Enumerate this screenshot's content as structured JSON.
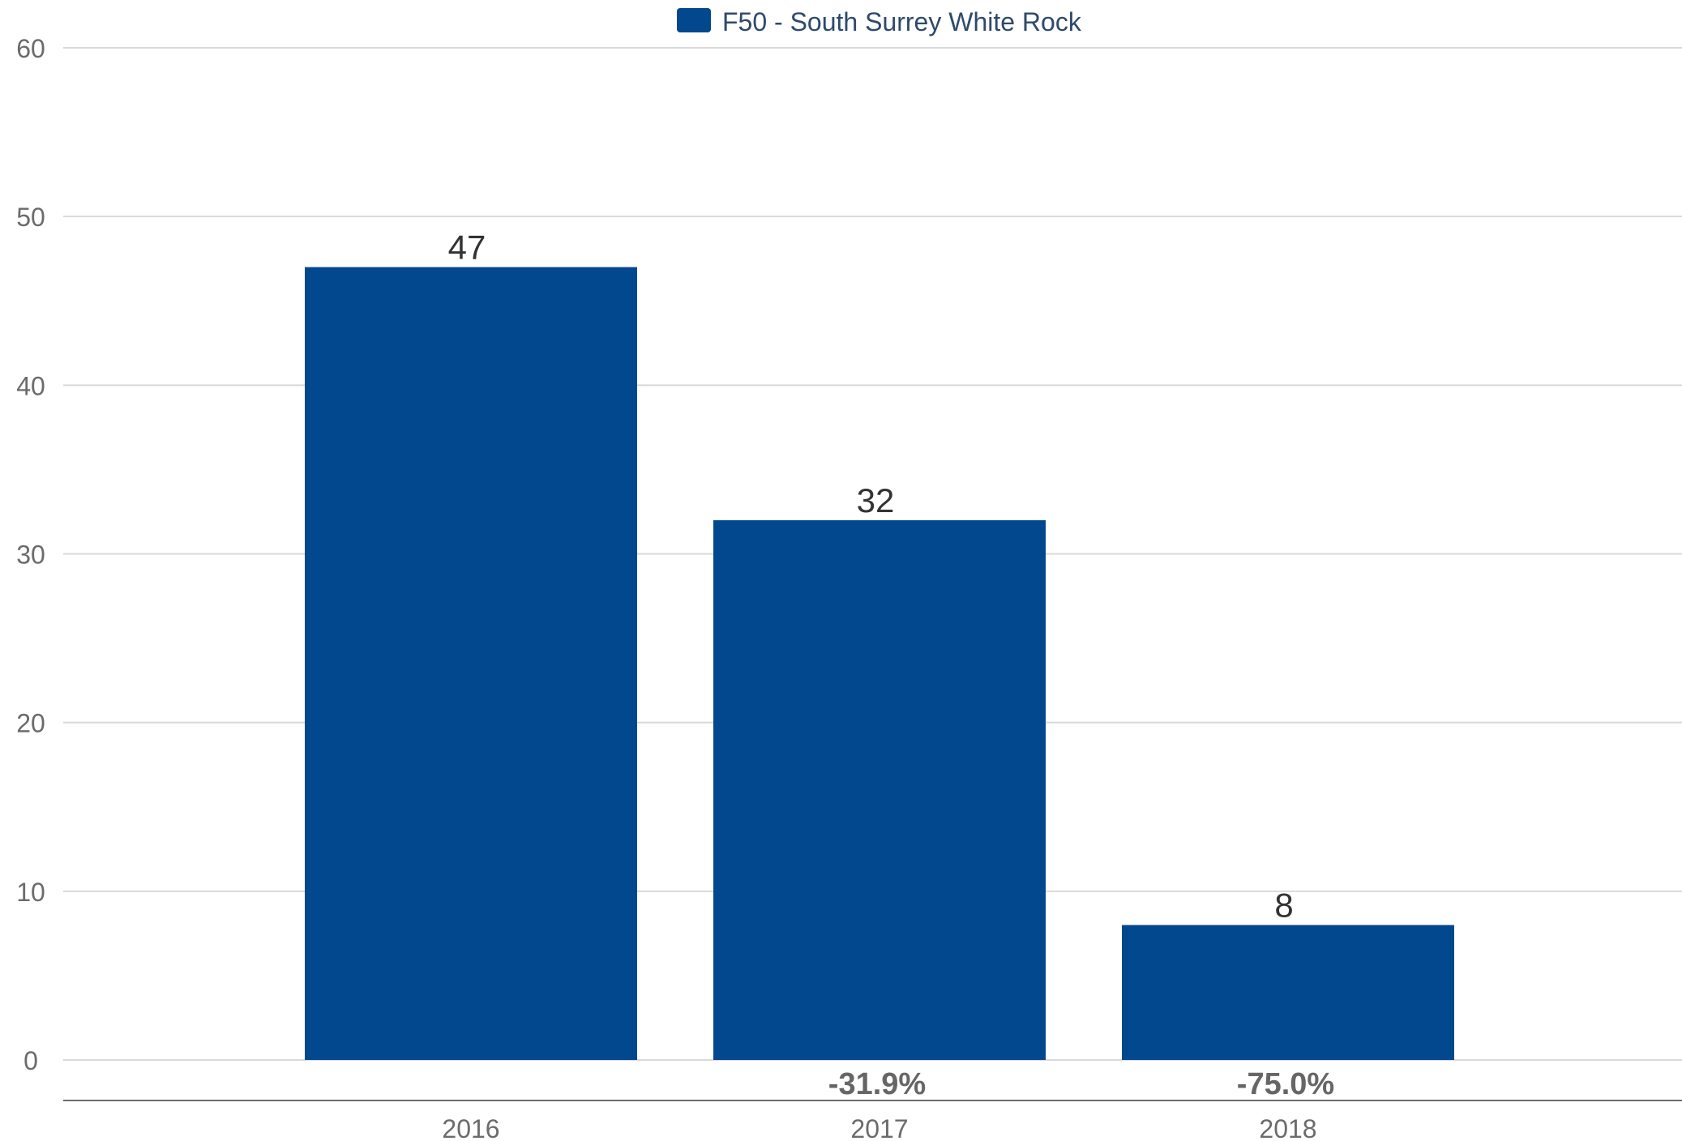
{
  "chart_data": {
    "type": "bar",
    "categories": [
      "2016",
      "2017",
      "2018"
    ],
    "series": [
      {
        "name": "F50 - South Surrey White Rock",
        "values": [
          47,
          32,
          8
        ],
        "color": "#02488f"
      }
    ],
    "value_labels": [
      "47",
      "32",
      "8"
    ],
    "change_labels": [
      "",
      "-31.9%",
      "-75.0%"
    ],
    "yticks": [
      "0",
      "10",
      "20",
      "30",
      "40",
      "50",
      "60"
    ],
    "ylim": [
      0,
      60
    ],
    "grid": true,
    "legend_position": "top-center"
  }
}
